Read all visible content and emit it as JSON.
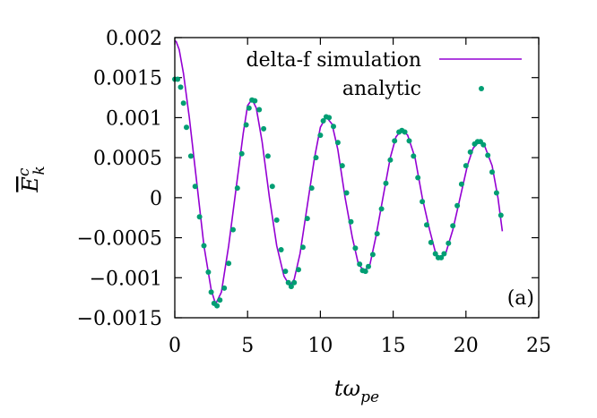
{
  "chart_data": {
    "type": "line",
    "title": "",
    "panel_label": "(a)",
    "xlabel": "tω",
    "xlabel_sub": "pe",
    "ylabel": "E",
    "ylabel_sup": "c",
    "ylabel_sub": "k",
    "xlim": [
      0,
      25
    ],
    "ylim": [
      -0.0015,
      0.002
    ],
    "xticks": [
      0,
      5,
      10,
      15,
      20,
      25
    ],
    "xtick_labels": [
      "0",
      "5",
      "10",
      "15",
      "20",
      "25"
    ],
    "yticks": [
      -0.0015,
      -0.001,
      -0.0005,
      0,
      0.0005,
      0.001,
      0.0015,
      0.002
    ],
    "ytick_labels": [
      "−0.0015",
      "−0.001",
      "−0.0005",
      "0",
      "0.0005",
      "0.001",
      "0.0015",
      "0.002"
    ],
    "grid": false,
    "legend_position": "top-right",
    "series": [
      {
        "name": "delta-f simulation",
        "style": "line",
        "color": "#9400d3",
        "x": [
          0.0,
          0.1,
          0.3,
          0.6,
          1.0,
          1.5,
          2.0,
          2.5,
          2.8,
          3.2,
          3.7,
          4.2,
          4.7,
          5.0,
          5.3,
          5.6,
          6.0,
          6.5,
          7.0,
          7.5,
          7.9,
          8.2,
          8.6,
          9.1,
          9.6,
          10.0,
          10.4,
          10.8,
          11.2,
          11.7,
          12.2,
          12.6,
          13.0,
          13.4,
          13.8,
          14.3,
          14.8,
          15.2,
          15.6,
          16.0,
          16.5,
          17.0,
          17.5,
          17.9,
          18.2,
          18.6,
          19.1,
          19.6,
          20.1,
          20.5,
          20.9,
          21.3,
          21.8,
          22.2,
          22.5
        ],
        "y": [
          0.00196,
          0.00195,
          0.00185,
          0.00155,
          0.001,
          0.0002,
          -0.0006,
          -0.00115,
          -0.00133,
          -0.00118,
          -0.0006,
          0.0001,
          0.0008,
          0.00115,
          0.00123,
          0.00112,
          0.0007,
          0.0,
          -0.0006,
          -0.00098,
          -0.0011,
          -0.00102,
          -0.0007,
          -0.0001,
          0.0005,
          0.00088,
          0.00101,
          0.00092,
          0.0006,
          0.0,
          -0.0005,
          -0.00082,
          -0.00092,
          -0.00084,
          -0.0005,
          0.0,
          0.0005,
          0.00076,
          0.00085,
          0.00078,
          0.0005,
          0.0,
          -0.0004,
          -0.00068,
          -0.00076,
          -0.0007,
          -0.0004,
          0.0,
          0.0004,
          0.00062,
          0.0007,
          0.00064,
          0.0004,
          0.0,
          -0.00042
        ]
      },
      {
        "name": "analytic",
        "style": "points",
        "color": "#009e73",
        "x": [
          0.0,
          0.2,
          0.4,
          0.6,
          0.8,
          1.1,
          1.4,
          1.7,
          2.0,
          2.3,
          2.5,
          2.7,
          2.9,
          3.1,
          3.4,
          3.7,
          4.0,
          4.3,
          4.6,
          4.9,
          5.1,
          5.3,
          5.5,
          5.8,
          6.1,
          6.4,
          6.7,
          7.0,
          7.3,
          7.6,
          7.8,
          8.0,
          8.2,
          8.5,
          8.8,
          9.1,
          9.4,
          9.7,
          10.0,
          10.2,
          10.4,
          10.6,
          10.9,
          11.2,
          11.5,
          11.8,
          12.1,
          12.4,
          12.7,
          12.9,
          13.1,
          13.3,
          13.6,
          13.9,
          14.2,
          14.5,
          14.8,
          15.1,
          15.4,
          15.6,
          15.8,
          16.1,
          16.4,
          16.7,
          17.0,
          17.3,
          17.6,
          17.9,
          18.1,
          18.3,
          18.5,
          18.8,
          19.1,
          19.4,
          19.7,
          20.0,
          20.3,
          20.6,
          20.8,
          21.0,
          21.2,
          21.5,
          21.8,
          22.1,
          22.4
        ],
        "y": [
          0.00148,
          0.00148,
          0.00138,
          0.00118,
          0.00088,
          0.00052,
          0.00014,
          -0.00024,
          -0.0006,
          -0.00093,
          -0.00118,
          -0.00132,
          -0.00135,
          -0.00128,
          -0.00113,
          -0.00082,
          -0.0004,
          0.00012,
          0.00055,
          0.00091,
          0.00112,
          0.00122,
          0.00121,
          0.0011,
          0.00086,
          0.00052,
          0.00014,
          -0.00028,
          -0.00065,
          -0.00092,
          -0.00106,
          -0.00111,
          -0.00106,
          -0.0009,
          -0.00062,
          -0.00026,
          0.00012,
          0.0005,
          0.00078,
          0.00096,
          0.00101,
          0.001,
          0.00089,
          0.00069,
          0.0004,
          6e-05,
          -0.0003,
          -0.00063,
          -0.00083,
          -0.00091,
          -0.00092,
          -0.00086,
          -0.00071,
          -0.00045,
          -0.00014,
          0.00018,
          0.00047,
          0.00071,
          0.00082,
          0.00084,
          0.00082,
          0.00071,
          0.00052,
          0.00025,
          -5e-05,
          -0.00034,
          -0.00056,
          -0.0007,
          -0.00075,
          -0.00075,
          -0.0007,
          -0.00057,
          -0.00035,
          -0.0001,
          0.00017,
          0.0004,
          0.00057,
          0.00067,
          0.0007,
          0.0007,
          0.00066,
          0.00053,
          0.00032,
          6e-05,
          -0.00022
        ]
      }
    ]
  }
}
